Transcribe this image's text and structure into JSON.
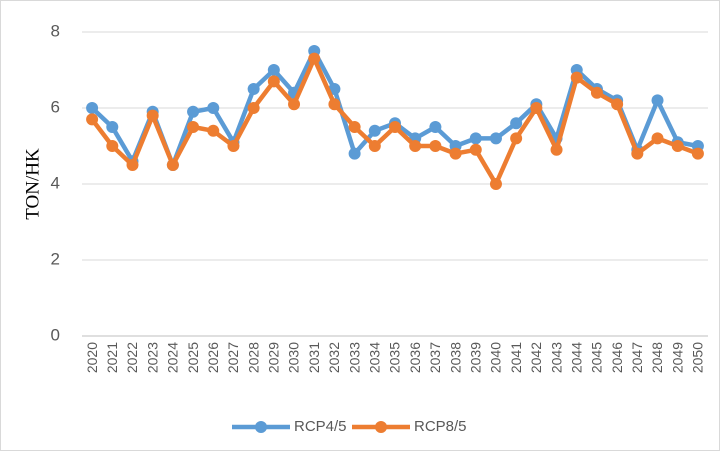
{
  "chart_data": {
    "type": "line",
    "y_label": "TON/HK",
    "categories": [
      "2020",
      "2021",
      "2022",
      "2023",
      "2024",
      "2025",
      "2026",
      "2027",
      "2028",
      "2029",
      "2030",
      "2031",
      "2032",
      "2033",
      "2034",
      "2035",
      "2036",
      "2037",
      "2038",
      "2039",
      "2040",
      "2041",
      "2042",
      "2043",
      "2044",
      "2045",
      "2046",
      "2047",
      "2048",
      "2049",
      "2050"
    ],
    "series": [
      {
        "name": "RCP4/5",
        "color": "#5b9bd5",
        "values": [
          6.0,
          5.5,
          4.6,
          5.9,
          4.5,
          5.9,
          6.0,
          5.1,
          6.5,
          7.0,
          6.4,
          7.5,
          6.5,
          4.8,
          5.4,
          5.6,
          5.2,
          5.5,
          5.0,
          5.2,
          5.2,
          5.6,
          6.1,
          5.2,
          7.0,
          6.5,
          6.2,
          4.9,
          6.2,
          5.1,
          5.0
        ]
      },
      {
        "name": "RCP8/5",
        "color": "#ed7d31",
        "values": [
          5.7,
          5.0,
          4.5,
          5.8,
          4.5,
          5.5,
          5.4,
          5.0,
          6.0,
          6.7,
          6.1,
          7.3,
          6.1,
          5.5,
          5.0,
          5.5,
          5.0,
          5.0,
          4.8,
          4.9,
          4.0,
          5.2,
          6.0,
          4.9,
          6.8,
          6.4,
          6.1,
          4.8,
          5.2,
          5.0,
          4.8
        ]
      }
    ],
    "ylim": [
      0,
      8
    ],
    "yticks": [
      0,
      2,
      4,
      6,
      8
    ],
    "grid": true,
    "legend": "bottom"
  }
}
